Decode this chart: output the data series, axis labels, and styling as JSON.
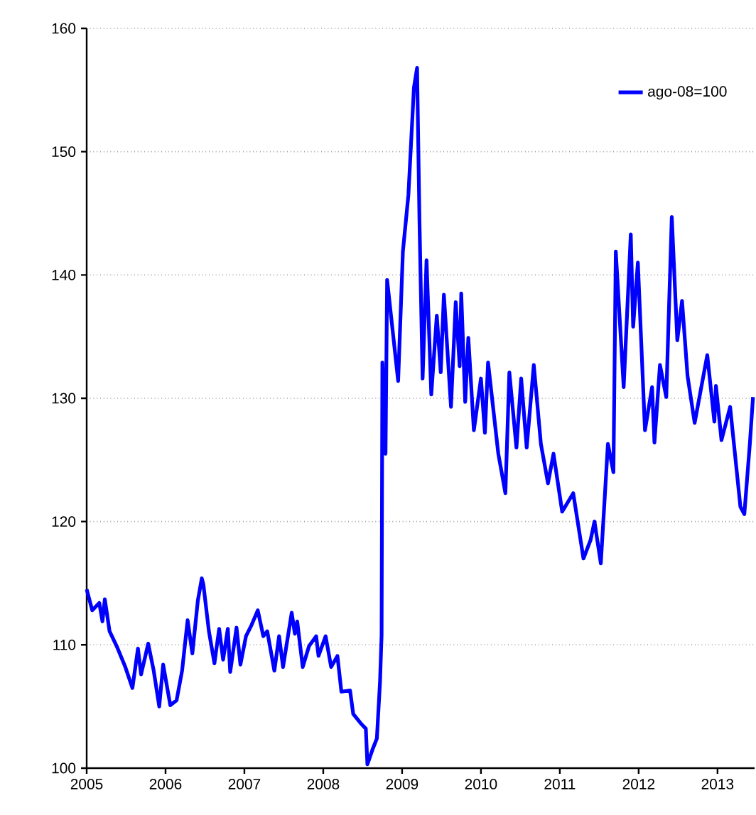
{
  "chart_data": {
    "type": "line",
    "xlim": [
      2005,
      2013.47
    ],
    "ylim": [
      100,
      160
    ],
    "xticks": [
      2005,
      2006,
      2007,
      2008,
      2009,
      2010,
      2011,
      2012,
      2013
    ],
    "yticks": [
      100,
      110,
      120,
      130,
      140,
      150,
      160
    ],
    "grid": "y",
    "legend": "top right",
    "marker": "none",
    "line_style": "solid",
    "series": [
      {
        "name": "ago-08=100",
        "color": "#0000ff",
        "x": [
          2005.0,
          2005.07,
          2005.16,
          2005.2,
          2005.23,
          2005.29,
          2005.38,
          2005.49,
          2005.58,
          2005.65,
          2005.69,
          2005.78,
          2005.85,
          2005.92,
          2005.97,
          2006.06,
          2006.14,
          2006.21,
          2006.28,
          2006.34,
          2006.41,
          2006.46,
          2006.48,
          2006.55,
          2006.62,
          2006.68,
          2006.73,
          2006.79,
          2006.82,
          2006.9,
          2006.95,
          2007.02,
          2007.09,
          2007.17,
          2007.24,
          2007.29,
          2007.38,
          2007.44,
          2007.49,
          2007.6,
          2007.64,
          2007.67,
          2007.74,
          2007.82,
          2007.91,
          2007.94,
          2008.03,
          2008.1,
          2008.18,
          2008.23,
          2008.34,
          2008.38,
          2008.48,
          2008.54,
          2008.56,
          2008.63,
          2008.68,
          2008.72,
          2008.74,
          2008.75,
          2008.79,
          2008.81,
          2008.95,
          2008.99,
          2009.01,
          2009.08,
          2009.15,
          2009.19,
          2009.22,
          2009.26,
          2009.31,
          2009.37,
          2009.44,
          2009.49,
          2009.53,
          2009.62,
          2009.68,
          2009.73,
          2009.75,
          2009.8,
          2009.84,
          2009.91,
          2010.0,
          2010.05,
          2010.09,
          2010.22,
          2010.31,
          2010.36,
          2010.45,
          2010.51,
          2010.58,
          2010.67,
          2010.76,
          2010.85,
          2010.92,
          2011.03,
          2011.17,
          2011.3,
          2011.39,
          2011.44,
          2011.52,
          2011.61,
          2011.68,
          2011.71,
          2011.81,
          2011.9,
          2011.93,
          2011.99,
          2012.08,
          2012.17,
          2012.2,
          2012.27,
          2012.35,
          2012.42,
          2012.49,
          2012.55,
          2012.62,
          2012.71,
          2012.87,
          2012.96,
          2012.98,
          2013.05,
          2013.16,
          2013.29,
          2013.34,
          2013.41,
          2013.45
        ],
        "values": [
          114.5,
          112.8,
          113.4,
          111.9,
          113.7,
          111.1,
          109.9,
          108.2,
          106.5,
          109.7,
          107.6,
          110.1,
          107.9,
          105.0,
          108.4,
          105.1,
          105.5,
          107.9,
          112.0,
          109.3,
          113.6,
          115.4,
          114.9,
          111.1,
          108.5,
          111.3,
          108.8,
          111.3,
          107.8,
          111.4,
          108.4,
          110.7,
          111.6,
          112.8,
          110.7,
          111.1,
          107.9,
          110.7,
          108.2,
          112.6,
          110.9,
          111.9,
          108.2,
          109.9,
          110.7,
          109.1,
          110.7,
          108.2,
          109.1,
          106.2,
          106.3,
          104.4,
          103.6,
          103.2,
          100.3,
          101.6,
          102.4,
          107.0,
          110.8,
          132.9,
          125.5,
          139.6,
          131.4,
          138.4,
          141.9,
          146.5,
          155.2,
          156.8,
          144.5,
          131.6,
          141.2,
          130.3,
          136.7,
          132.1,
          138.4,
          129.3,
          137.8,
          132.6,
          138.5,
          129.7,
          134.9,
          127.4,
          131.6,
          127.2,
          132.9,
          125.5,
          122.3,
          132.1,
          126.0,
          131.6,
          126.0,
          132.7,
          126.3,
          123.1,
          125.5,
          120.8,
          122.3,
          117.0,
          118.5,
          120.0,
          116.6,
          126.3,
          124.0,
          141.9,
          130.9,
          143.3,
          135.8,
          141.0,
          127.4,
          130.9,
          126.4,
          132.7,
          130.1,
          144.7,
          134.7,
          137.9,
          131.8,
          128.0,
          133.5,
          128.1,
          131.0,
          126.6,
          129.3,
          121.2,
          120.6,
          126.3,
          130.1
        ]
      }
    ]
  }
}
